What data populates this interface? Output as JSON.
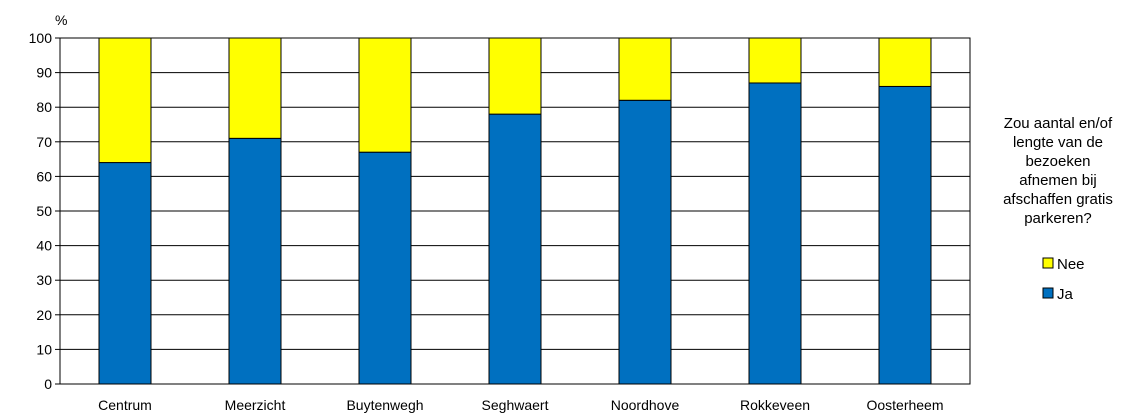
{
  "chart_data": {
    "type": "bar",
    "stacked": true,
    "categories": [
      "Centrum",
      "Meerzicht",
      "Buytenwegh",
      "Seghwaert",
      "Noordhove",
      "Rokkeveen",
      "Oosterheem"
    ],
    "series": [
      {
        "name": "Ja",
        "color": "#0070C0",
        "values": [
          64,
          71,
          67,
          78,
          82,
          87,
          86
        ]
      },
      {
        "name": "Nee",
        "color": "#FFFF00",
        "values": [
          36,
          29,
          33,
          22,
          18,
          13,
          14
        ]
      }
    ],
    "ylabel": "%",
    "ylim": [
      0,
      100
    ],
    "yticks": [
      "0",
      "10",
      "20",
      "30",
      "40",
      "50",
      "60",
      "70",
      "80",
      "90",
      "100"
    ],
    "grid": true,
    "legend": {
      "position": "right",
      "title_lines": [
        "Zou aantal en/of",
        "lengte van de",
        "bezoeken",
        "afnemen bij",
        "afschaffen gratis",
        "parkeren?"
      ],
      "order": [
        "Nee",
        "Ja"
      ]
    }
  }
}
